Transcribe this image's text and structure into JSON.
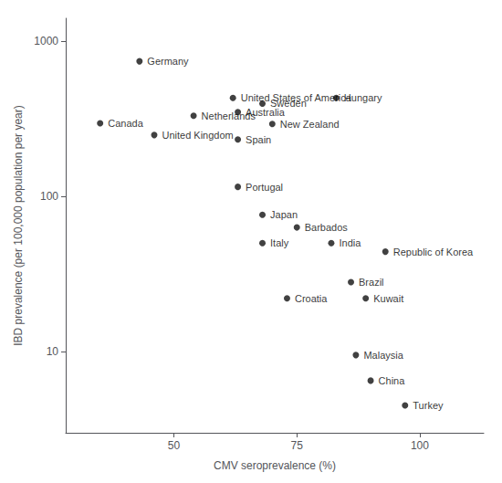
{
  "chart_data": {
    "type": "scatter",
    "x": [
      43,
      35,
      46,
      54,
      62,
      68,
      63,
      70,
      83,
      63,
      63,
      68,
      75,
      68,
      82,
      93,
      73,
      86,
      89,
      87,
      90,
      97
    ],
    "values": [
      740,
      295,
      248,
      330,
      430,
      395,
      348,
      292,
      430,
      232,
      115,
      76,
      63,
      50,
      50,
      44,
      22,
      28,
      22,
      9.5,
      6.5,
      4.5
    ],
    "annotations": [
      "Germany",
      "Canada",
      "United Kingdom",
      "Netherlands",
      "United States of America",
      "Sweden",
      "Australia",
      "New Zealand",
      "Hungary",
      "Spain",
      "Portugal",
      "Japan",
      "Barbados",
      "Italy",
      "India",
      "Republic of Korea",
      "Croatia",
      "Brazil",
      "Kuwait",
      "Malaysia",
      "China",
      "Turkey"
    ],
    "xlabel": "CMV seroprevalence (%)",
    "ylabel": "IBD prevalence (per 100,000 population per year)",
    "xlim": [
      28,
      113
    ],
    "ylim": [
      3.0,
      1400
    ],
    "xticks": [
      50,
      75,
      100
    ],
    "yticks": [
      10,
      100,
      1000
    ],
    "log": "y",
    "grid": false,
    "color": "#111111"
  }
}
